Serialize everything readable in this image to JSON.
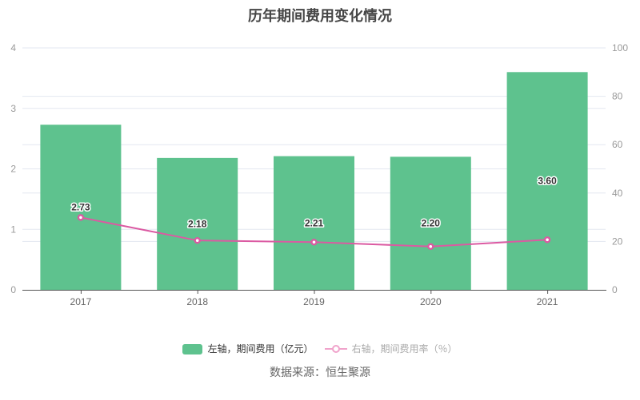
{
  "source": "数据来源：恒生聚源",
  "colors": {
    "bar": "#5ec28e",
    "line": "#db5aa2",
    "legend_line": "#f0a3cb",
    "grid": "#e3e7f0",
    "axis_line": "#555555",
    "y_label": "#999999",
    "x_label": "#666666",
    "bar_label": "#333333",
    "title": "#464646",
    "legend_text": "#333333",
    "legend_text_dim": "#aaaaaa",
    "source_text": "#666666"
  },
  "chart_data": {
    "type": "bar+line",
    "title": "历年期间费用变化情况",
    "categories": [
      "2017",
      "2018",
      "2019",
      "2020",
      "2021"
    ],
    "series": [
      {
        "name": "左轴，期间费用（亿元）",
        "type": "bar",
        "axis": "left",
        "values": [
          2.73,
          2.18,
          2.21,
          2.2,
          3.6
        ],
        "data_labels": [
          "2.73",
          "2.18",
          "2.21",
          "2.20",
          "3.60"
        ]
      },
      {
        "name": "右轴，期间费用率（％）",
        "type": "line",
        "axis": "right",
        "values": [
          29.9,
          20.4,
          19.7,
          17.9,
          20.7
        ]
      }
    ],
    "left_axis": {
      "range": [
        0,
        4
      ],
      "ticks": [
        0,
        1,
        2,
        3,
        4
      ]
    },
    "right_axis": {
      "range": [
        0,
        100
      ],
      "ticks": [
        0,
        20,
        40,
        60,
        80,
        100
      ]
    },
    "grid": true,
    "legend_position": "bottom"
  }
}
